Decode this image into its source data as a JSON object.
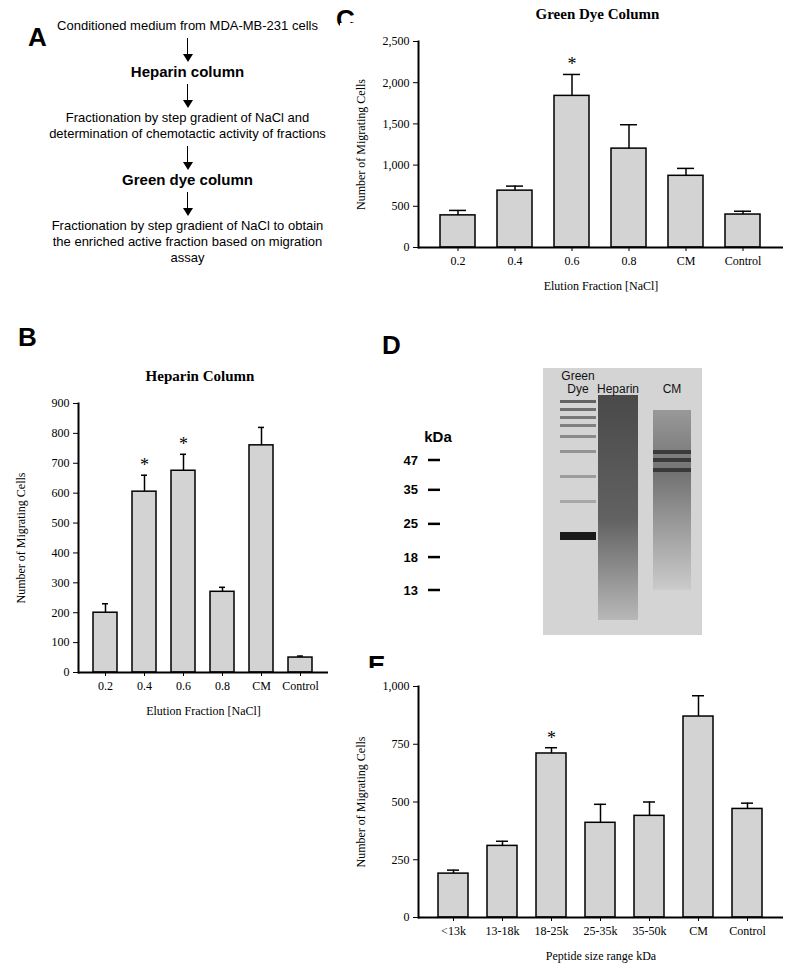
{
  "diagram": {
    "panel": "A",
    "steps": [
      {
        "text": "Conditioned medium from MDA-MB-231 cells",
        "emphasis": false
      },
      {
        "text": "Heparin column",
        "emphasis": true
      },
      {
        "text": "Fractionation by step gradient of NaCl and determination of chemotactic activity of fractions",
        "emphasis": false
      },
      {
        "text": "Green dye column",
        "emphasis": true
      },
      {
        "text": "Fractionation by step gradient of NaCl to obtain the enriched active fraction based on migration assay",
        "emphasis": false
      }
    ]
  },
  "gel": {
    "panel": "D",
    "unit": "kDa",
    "lanes": [
      "Green Dye",
      "Heparin",
      "CM"
    ],
    "markers": [
      47,
      35,
      25,
      18,
      13
    ]
  },
  "chart_data": [
    {
      "type": "bar",
      "panel": "B",
      "title": "Heparin Column",
      "x_label": "Elution Fraction [NaCl]",
      "y_label": "Number of Migrating Cells",
      "categories": [
        "0.2",
        "0.4",
        "0.6",
        "0.8",
        "CM",
        "Control"
      ],
      "values": [
        200,
        605,
        675,
        270,
        760,
        50
      ],
      "errors": [
        30,
        55,
        55,
        15,
        60,
        5
      ],
      "color": "#d3d3d3",
      "ylim": [
        0,
        900
      ],
      "yticks": [
        0,
        100,
        200,
        300,
        400,
        500,
        600,
        700,
        800,
        900
      ],
      "grid": false,
      "annotations": [
        {
          "category": "0.4",
          "text": "*"
        },
        {
          "category": "0.6",
          "text": "*"
        }
      ]
    },
    {
      "type": "bar",
      "panel": "C",
      "title": "Green Dye Column",
      "x_label": "Elution Fraction [NaCl]",
      "y_label": "Number of Migrating Cells",
      "categories": [
        "0.2",
        "0.4",
        "0.6",
        "0.8",
        "CM",
        "Control"
      ],
      "values": [
        390,
        690,
        1840,
        1200,
        870,
        400
      ],
      "errors": [
        60,
        55,
        260,
        290,
        90,
        40
      ],
      "color": "#d3d3d3",
      "ylim": [
        0,
        2500
      ],
      "yticks": [
        0,
        500,
        1000,
        1500,
        2000,
        2500
      ],
      "grid": false,
      "annotations": [
        {
          "category": "0.6",
          "text": "*"
        }
      ]
    },
    {
      "type": "bar",
      "panel": "E",
      "x_label": "Peptide size range kDa",
      "y_label": "Number of Migrating Cells",
      "categories": [
        "<13k",
        "13-18k",
        "18-25k",
        "25-35k",
        "35-50k",
        "CM",
        "Control"
      ],
      "values": [
        190,
        310,
        710,
        410,
        440,
        870,
        470
      ],
      "errors": [
        15,
        20,
        25,
        80,
        60,
        90,
        25
      ],
      "color": "#d3d3d3",
      "ylim": [
        0,
        1000
      ],
      "yticks": [
        0,
        250,
        500,
        750,
        1000
      ],
      "grid": false,
      "annotations": [
        {
          "category": "18-25k",
          "text": "*"
        }
      ]
    }
  ]
}
